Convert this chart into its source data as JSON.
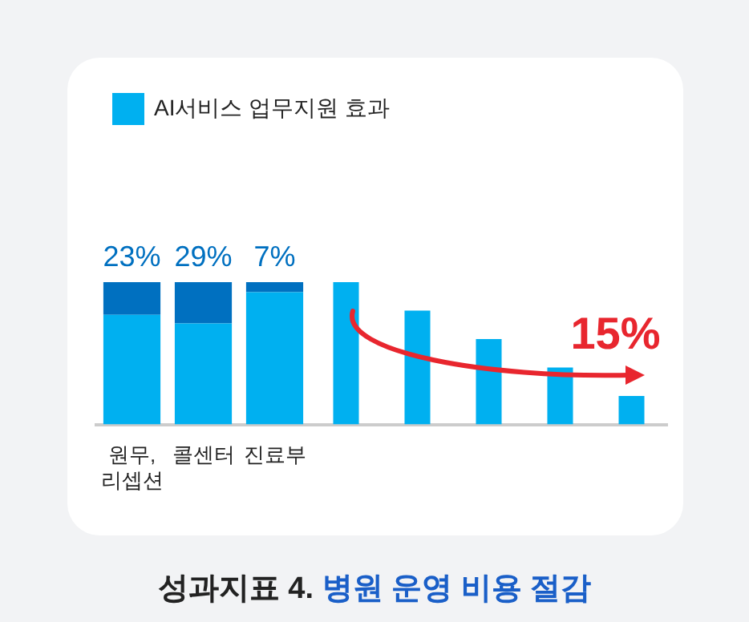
{
  "chart_data": {
    "type": "bar",
    "title": "성과지표 4. 병원 운영 비용 절감",
    "categories": [
      "원무, 리셉션",
      "콜센터",
      "진료부",
      null,
      null,
      null,
      null,
      null
    ],
    "ylim": [
      0,
      100
    ],
    "tick_labels": "x",
    "stacked": true,
    "legend": "top left",
    "series": [
      {
        "name": "AI서비스 업무지원 효과",
        "color": "#00b0f0",
        "values": [
          77,
          71,
          93,
          100,
          80,
          60,
          40,
          20
        ]
      },
      {
        "color": "#0070c0",
        "values": [
          23,
          29,
          7,
          null,
          null,
          null,
          null,
          null
        ],
        "value_labels": [
          "23%",
          "29%",
          "7%",
          null,
          null,
          null,
          null,
          null
        ]
      }
    ],
    "annotations": [
      "15%"
    ]
  }
}
